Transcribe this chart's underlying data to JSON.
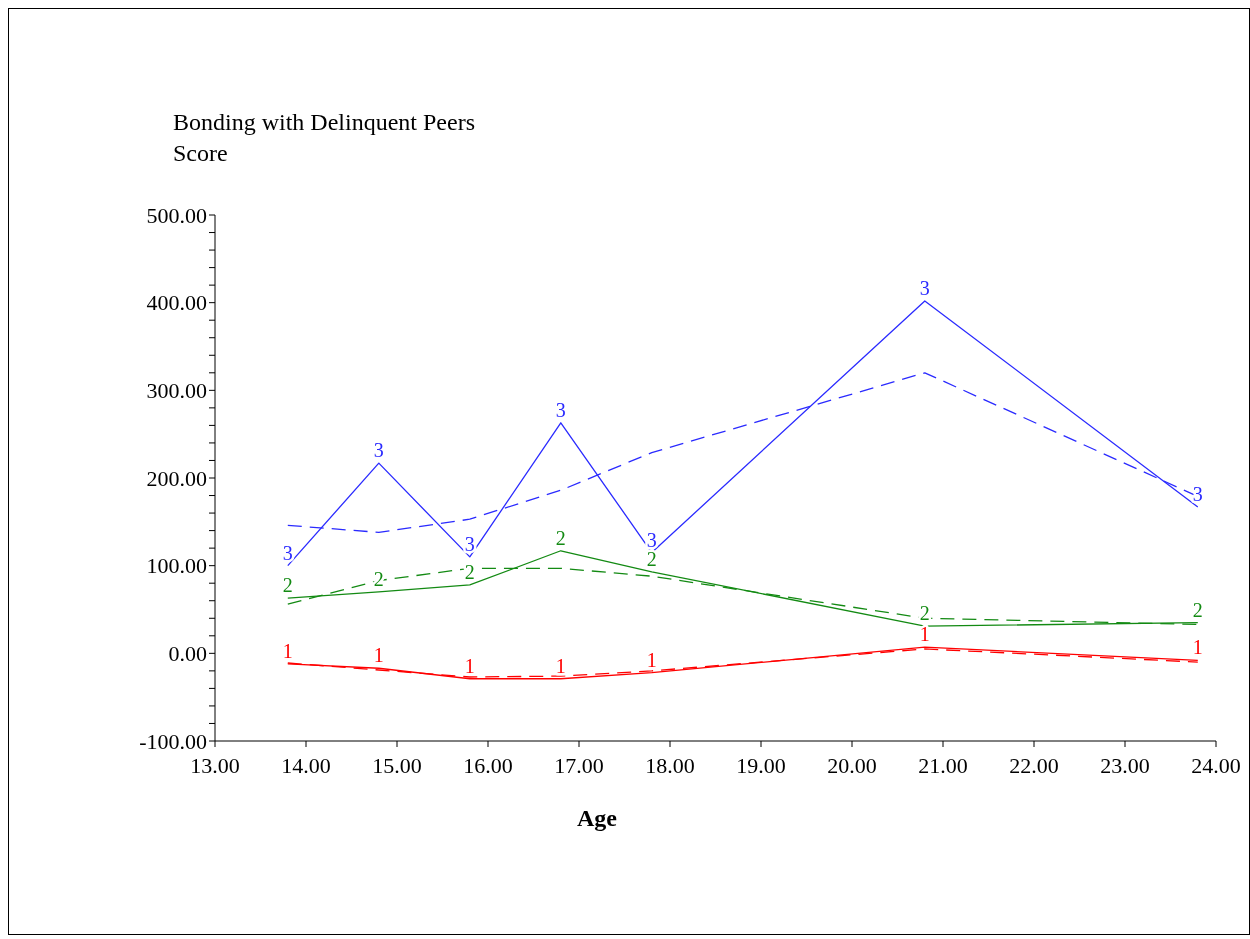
{
  "chart_data": {
    "type": "line",
    "ylabel": "Bonding with Delinquent Peers\nScore",
    "xlabel": "Age",
    "x": [
      13.8,
      14.8,
      15.8,
      16.8,
      17.8,
      20.8,
      23.8
    ],
    "series": [
      {
        "name": "3",
        "color": "#2a2aff",
        "line_style": "solid",
        "values": [
          100,
          217,
          110,
          263,
          115,
          402,
          167
        ]
      },
      {
        "color": "#2a2aff",
        "line_style": "dashed",
        "values": [
          146,
          138,
          153,
          186,
          229,
          320,
          179
        ]
      },
      {
        "name": "2",
        "color": "#138a13",
        "line_style": "solid",
        "values": [
          63,
          70,
          78,
          117,
          93,
          31,
          35
        ]
      },
      {
        "color": "#138a13",
        "line_style": "dashed",
        "values": [
          56,
          83,
          97,
          97,
          88,
          40,
          33
        ]
      },
      {
        "name": "1",
        "color": "#ff0000",
        "line_style": "solid",
        "values": [
          -12,
          -17,
          -29,
          -29,
          -22,
          7,
          -8
        ]
      },
      {
        "color": "#ff0000",
        "line_style": "dashed",
        "values": [
          -11,
          -19,
          -27,
          -26,
          -20,
          5,
          -10
        ]
      }
    ],
    "xlim": [
      13,
      24
    ],
    "xticks": [
      {
        "value": 13,
        "label": "13.00"
      },
      {
        "value": 14,
        "label": "14.00"
      },
      {
        "value": 15,
        "label": "15.00"
      },
      {
        "value": 16,
        "label": "16.00"
      },
      {
        "value": 17,
        "label": "17.00"
      },
      {
        "value": 18,
        "label": "18.00"
      },
      {
        "value": 19,
        "label": "19.00"
      },
      {
        "value": 20,
        "label": "20.00"
      },
      {
        "value": 21,
        "label": "21.00"
      },
      {
        "value": 22,
        "label": "22.00"
      },
      {
        "value": 23,
        "label": "23.00"
      },
      {
        "value": 24,
        "label": "24.00"
      }
    ],
    "ylim": [
      -100,
      500
    ],
    "yticks": [
      {
        "value": -100,
        "label": "-100.00"
      },
      {
        "value": -80,
        "label": null
      },
      {
        "value": -60,
        "label": null
      },
      {
        "value": -40,
        "label": null
      },
      {
        "value": -20,
        "label": null
      },
      {
        "value": 0,
        "label": "0.00"
      },
      {
        "value": 20,
        "label": null
      },
      {
        "value": 40,
        "label": null
      },
      {
        "value": 60,
        "label": null
      },
      {
        "value": 80,
        "label": null
      },
      {
        "value": 100,
        "label": "100.00"
      },
      {
        "value": 120,
        "label": null
      },
      {
        "value": 140,
        "label": null
      },
      {
        "value": 160,
        "label": null
      },
      {
        "value": 180,
        "label": null
      },
      {
        "value": 200,
        "label": "200.00"
      },
      {
        "value": 220,
        "label": null
      },
      {
        "value": 240,
        "label": null
      },
      {
        "value": 260,
        "label": null
      },
      {
        "value": 280,
        "label": null
      },
      {
        "value": 300,
        "label": "300.00"
      },
      {
        "value": 320,
        "label": null
      },
      {
        "value": 340,
        "label": null
      },
      {
        "value": 360,
        "label": null
      },
      {
        "value": 380,
        "label": null
      },
      {
        "value": 400,
        "label": "400.00"
      },
      {
        "value": 420,
        "label": null
      },
      {
        "value": 440,
        "label": null
      },
      {
        "value": 460,
        "label": null
      },
      {
        "value": 480,
        "label": null
      },
      {
        "value": 500,
        "label": "500.00"
      }
    ],
    "grid": false,
    "legend": false
  }
}
